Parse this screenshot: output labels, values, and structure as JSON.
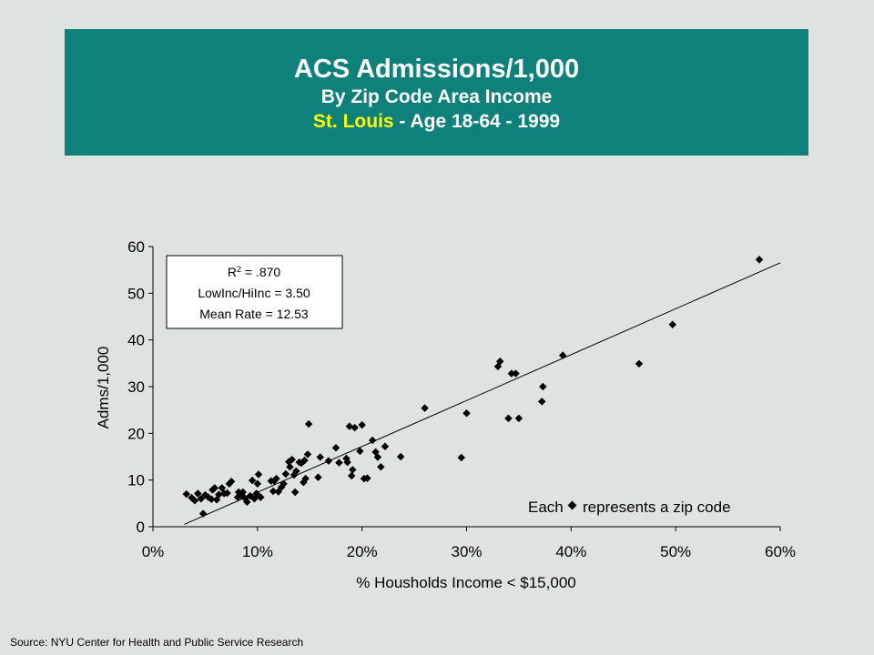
{
  "title": {
    "main": "ACS Admissions/1,000",
    "sub": "By Zip Code Area Income",
    "city": "St. Louis",
    "rest": " - Age 18-64 - 1999"
  },
  "colors": {
    "banner": "#0e817b",
    "city": "#ffff00",
    "background": "#dfe3df"
  },
  "stats": {
    "r2_prefix": "R",
    "r2_sup": "2",
    "r2_suffix": " = .870",
    "ratio": "LowInc/HiInc = 3.50",
    "mean": "Mean Rate = 12.53"
  },
  "legend_note": {
    "before": "Each",
    "after": "represents a zip code"
  },
  "source": "Source:  NYU Center for Health and Public Service Research",
  "chart_data": {
    "type": "scatter",
    "xlabel": "% Housholds Income < $15,000",
    "ylabel": "Adms/1,000",
    "xlim": [
      0,
      0.6
    ],
    "ylim": [
      0,
      60
    ],
    "xticks": [
      {
        "v": 0,
        "label": "0%"
      },
      {
        "v": 0.1,
        "label": "10%"
      },
      {
        "v": 0.2,
        "label": "20%"
      },
      {
        "v": 0.3,
        "label": "30%"
      },
      {
        "v": 0.4,
        "label": "40%"
      },
      {
        "v": 0.5,
        "label": "50%"
      },
      {
        "v": 0.6,
        "label": "60%"
      }
    ],
    "yticks": [
      {
        "v": 0,
        "label": "0"
      },
      {
        "v": 10,
        "label": "10"
      },
      {
        "v": 20,
        "label": "20"
      },
      {
        "v": 30,
        "label": "30"
      },
      {
        "v": 40,
        "label": "40"
      },
      {
        "v": 50,
        "label": "50"
      },
      {
        "v": 60,
        "label": "60"
      }
    ],
    "trendline": [
      [
        0.03,
        0.5
      ],
      [
        0.6,
        56.5
      ]
    ],
    "points": [
      [
        0.032,
        7.0
      ],
      [
        0.037,
        6.2
      ],
      [
        0.04,
        5.6
      ],
      [
        0.043,
        7.1
      ],
      [
        0.046,
        6.0
      ],
      [
        0.048,
        2.8
      ],
      [
        0.05,
        6.8
      ],
      [
        0.053,
        6.3
      ],
      [
        0.056,
        5.9
      ],
      [
        0.057,
        7.9
      ],
      [
        0.059,
        8.3
      ],
      [
        0.061,
        5.8
      ],
      [
        0.063,
        6.9
      ],
      [
        0.066,
        8.3
      ],
      [
        0.068,
        7.1
      ],
      [
        0.071,
        7.2
      ],
      [
        0.073,
        9.2
      ],
      [
        0.075,
        9.7
      ],
      [
        0.081,
        6.3
      ],
      [
        0.082,
        7.4
      ],
      [
        0.085,
        6.6
      ],
      [
        0.086,
        7.4
      ],
      [
        0.088,
        6.1
      ],
      [
        0.09,
        5.3
      ],
      [
        0.093,
        6.6
      ],
      [
        0.095,
        9.9
      ],
      [
        0.097,
        6.0
      ],
      [
        0.099,
        7.1
      ],
      [
        0.1,
        9.2
      ],
      [
        0.101,
        11.2
      ],
      [
        0.103,
        6.3
      ],
      [
        0.113,
        9.8
      ],
      [
        0.115,
        7.6
      ],
      [
        0.116,
        9.8
      ],
      [
        0.118,
        10.3
      ],
      [
        0.12,
        7.5
      ],
      [
        0.123,
        8.5
      ],
      [
        0.125,
        9.2
      ],
      [
        0.127,
        11.3
      ],
      [
        0.13,
        13.9
      ],
      [
        0.131,
        12.8
      ],
      [
        0.133,
        14.4
      ],
      [
        0.135,
        11.1
      ],
      [
        0.136,
        7.4
      ],
      [
        0.137,
        11.9
      ],
      [
        0.14,
        13.8
      ],
      [
        0.142,
        13.6
      ],
      [
        0.144,
        9.5
      ],
      [
        0.145,
        14.2
      ],
      [
        0.146,
        10.3
      ],
      [
        0.148,
        15.5
      ],
      [
        0.149,
        22.0
      ],
      [
        0.158,
        10.6
      ],
      [
        0.16,
        14.9
      ],
      [
        0.168,
        14.1
      ],
      [
        0.175,
        16.9
      ],
      [
        0.178,
        13.7
      ],
      [
        0.185,
        14.6
      ],
      [
        0.186,
        13.8
      ],
      [
        0.188,
        21.5
      ],
      [
        0.19,
        10.9
      ],
      [
        0.191,
        12.2
      ],
      [
        0.193,
        21.2
      ],
      [
        0.198,
        16.2
      ],
      [
        0.2,
        21.8
      ],
      [
        0.202,
        10.3
      ],
      [
        0.205,
        10.4
      ],
      [
        0.21,
        18.5
      ],
      [
        0.213,
        16.0
      ],
      [
        0.215,
        14.9
      ],
      [
        0.218,
        12.8
      ],
      [
        0.222,
        17.2
      ],
      [
        0.237,
        15.0
      ],
      [
        0.26,
        25.4
      ],
      [
        0.295,
        14.8
      ],
      [
        0.3,
        24.3
      ],
      [
        0.33,
        34.3
      ],
      [
        0.332,
        35.4
      ],
      [
        0.34,
        23.2
      ],
      [
        0.343,
        32.8
      ],
      [
        0.347,
        32.8
      ],
      [
        0.35,
        23.2
      ],
      [
        0.372,
        26.8
      ],
      [
        0.373,
        30.0
      ],
      [
        0.392,
        36.7
      ],
      [
        0.465,
        34.9
      ],
      [
        0.497,
        43.3
      ],
      [
        0.58,
        57.2
      ]
    ]
  }
}
